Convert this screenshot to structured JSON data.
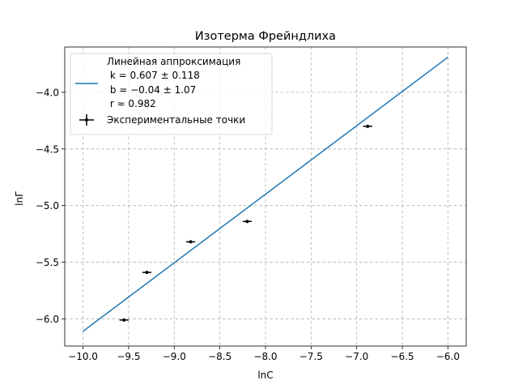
{
  "chart_data": {
    "type": "scatter",
    "title": "Изотерма Фрейндлиха",
    "xlabel": "lnC",
    "ylabel": "lnΓ",
    "xlim": [
      -10.2,
      -5.8
    ],
    "ylim": [
      -6.24,
      -3.6
    ],
    "xticks": [
      -10.0,
      -9.5,
      -9.0,
      -8.5,
      -8.0,
      -7.5,
      -7.0,
      -6.5,
      -6.0
    ],
    "xtick_labels": [
      "−10.0",
      "−9.5",
      "−9.0",
      "−8.5",
      "−8.0",
      "−7.5",
      "−7.0",
      "−6.5",
      "−6.0"
    ],
    "yticks": [
      -6.0,
      -5.5,
      -5.0,
      -4.5,
      -4.0
    ],
    "ytick_labels": [
      "−6.0",
      "−5.5",
      "−5.0",
      "−4.5",
      "−4.0"
    ],
    "grid": true,
    "legend_position": "top-left",
    "series": [
      {
        "name": "Линейная аппроксимация",
        "kind": "line",
        "color": "#1f77b4",
        "x": [
          -10.0,
          -6.0
        ],
        "y": [
          -6.11,
          -3.69
        ]
      },
      {
        "name": "Экспериментальные точки",
        "kind": "errorbar",
        "color": "#000000",
        "x": [
          -9.55,
          -9.3,
          -8.82,
          -8.2,
          -6.88
        ],
        "y": [
          -6.01,
          -5.59,
          -5.32,
          -5.14,
          -4.3
        ],
        "xerr": 0.05,
        "yerr": 0.01
      }
    ],
    "legend": {
      "line_label_lines": [
        "Линейная аппроксимация",
        " k = 0.607 ± 0.118",
        " b = −0.04 ± 1.07",
        " r ≈ 0.982"
      ],
      "points_label": "Экспериментальные точки"
    }
  }
}
